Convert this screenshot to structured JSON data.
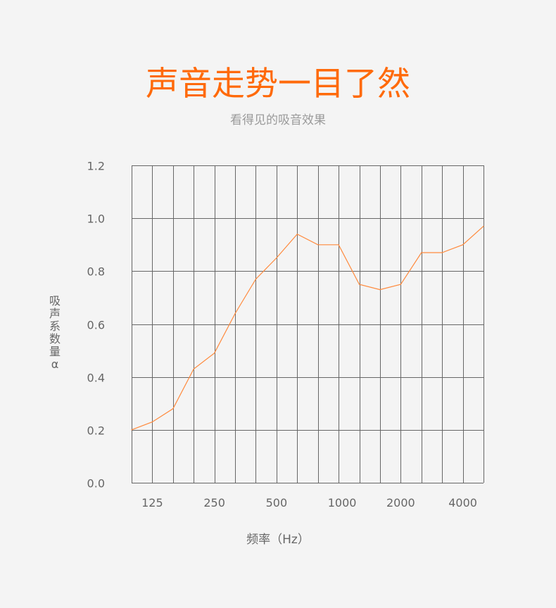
{
  "header": {
    "title": "声音走势一目了然",
    "subtitle": "看得见的吸音效果"
  },
  "colors": {
    "title": "#ff6a0a",
    "line": "#ff8a3d",
    "grid": "#666666",
    "background": "#f4f4f4"
  },
  "chart_data": {
    "type": "line",
    "title": "",
    "xlabel": "频率（Hz）",
    "ylabel": "吸声系数量α",
    "x": [
      100,
      125,
      160,
      200,
      250,
      315,
      400,
      500,
      630,
      800,
      1000,
      1250,
      1600,
      2000,
      2500,
      3150,
      4000,
      5000
    ],
    "x_tick_labels": [
      "125",
      "250",
      "500",
      "1000",
      "2000",
      "4000"
    ],
    "x_tick_values": [
      125,
      250,
      500,
      1000,
      2000,
      4000
    ],
    "y_tick_labels": [
      "0.0",
      "0.2",
      "0.4",
      "0.6",
      "0.8",
      "1.0",
      "1.2"
    ],
    "ylim": [
      0,
      1.2
    ],
    "x_scale": "log",
    "grid": true,
    "series": [
      {
        "values": [
          0.2,
          0.23,
          0.28,
          0.43,
          0.49,
          0.64,
          0.77,
          0.85,
          0.94,
          0.9,
          0.9,
          0.75,
          0.73,
          0.75,
          0.87,
          0.87,
          0.9,
          0.97
        ]
      }
    ]
  }
}
